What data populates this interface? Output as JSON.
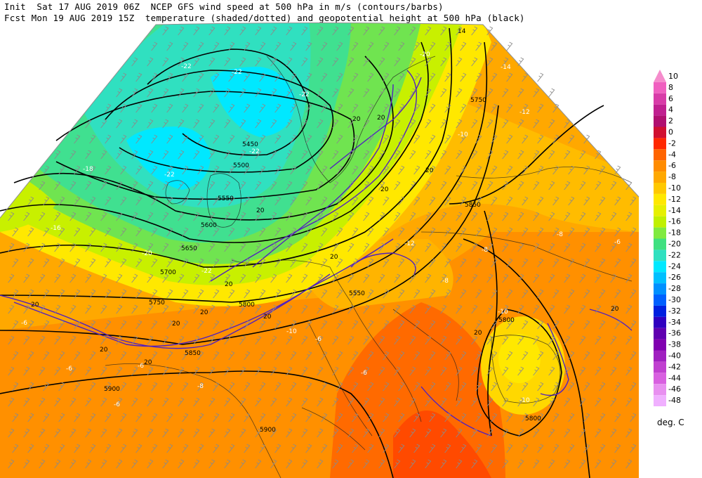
{
  "header": {
    "line1": "Init  Sat 17 AUG 2019 06Z  NCEP GFS wind speed at 500 hPa in m/s (contours/barbs)",
    "line2": "Fcst Mon 19 AUG 2019 15Z  temperature (shaded/dotted) and geopotential height at 500 hPa (black)"
  },
  "colorbar": {
    "unit": "deg. C",
    "levels": [
      {
        "label": "10",
        "color": "#f58ccc"
      },
      {
        "label": "8",
        "color": "#f060c0"
      },
      {
        "label": "6",
        "color": "#d83ca8"
      },
      {
        "label": "4",
        "color": "#c02090"
      },
      {
        "label": "2",
        "color": "#b01070"
      },
      {
        "label": "0",
        "color": "#d01030"
      },
      {
        "label": "-2",
        "color": "#ff2800"
      },
      {
        "label": "-4",
        "color": "#ff6400"
      },
      {
        "label": "-6",
        "color": "#ff8c00"
      },
      {
        "label": "-8",
        "color": "#ffa800"
      },
      {
        "label": "-10",
        "color": "#ffc800"
      },
      {
        "label": "-12",
        "color": "#ffe800"
      },
      {
        "label": "-14",
        "color": "#e6f000"
      },
      {
        "label": "-16",
        "color": "#c0f000"
      },
      {
        "label": "-18",
        "color": "#80ea40"
      },
      {
        "label": "-20",
        "color": "#40e080"
      },
      {
        "label": "-22",
        "color": "#30e0c0"
      },
      {
        "label": "-24",
        "color": "#00e8ff"
      },
      {
        "label": "-26",
        "color": "#00c0ff"
      },
      {
        "label": "-28",
        "color": "#0090ff"
      },
      {
        "label": "-30",
        "color": "#0060ff"
      },
      {
        "label": "-32",
        "color": "#0020e0"
      },
      {
        "label": "-34",
        "color": "#3000c0"
      },
      {
        "label": "-36",
        "color": "#6000b0"
      },
      {
        "label": "-38",
        "color": "#8000b0"
      },
      {
        "label": "-40",
        "color": "#a020c0"
      },
      {
        "label": "-42",
        "color": "#c040d0"
      },
      {
        "label": "-44",
        "color": "#d860e0"
      },
      {
        "label": "-46",
        "color": "#e890f0"
      },
      {
        "label": "-48",
        "color": "#f0b0ff"
      }
    ]
  },
  "height_labels": [
    "5450",
    "5500",
    "5550",
    "5600",
    "5650",
    "5700",
    "5750",
    "5800",
    "5850",
    "5900",
    "5550",
    "5750",
    "5850",
    "5800",
    "5800",
    "5900"
  ],
  "temp_labels": [
    "-22",
    "-22",
    "-22",
    "-22",
    "-22",
    "-22",
    "-18",
    "-16",
    "-20",
    "-20",
    "-14",
    "-12",
    "-10",
    "-12",
    "-8",
    "-6",
    "-10",
    "-6",
    "-8",
    "-6",
    "-6",
    "-6",
    "-8",
    "-10",
    "-10",
    "-6",
    "-8",
    "-6"
  ],
  "wind_labels": [
    "20",
    "20",
    "20",
    "20",
    "20",
    "20",
    "20",
    "20",
    "20",
    "20",
    "20",
    "20",
    "20",
    "14",
    "20",
    "20"
  ]
}
